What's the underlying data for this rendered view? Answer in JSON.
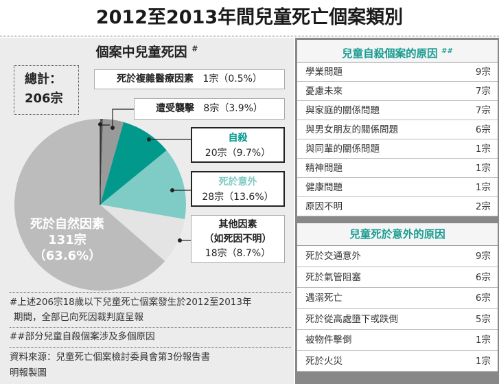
{
  "title": "2012至2013年間兒童死亡個案類別",
  "chart_data": {
    "type": "pie",
    "title": "個案中兒童死因",
    "title_mark": "#",
    "total_label": "總計：",
    "total_value": "206宗",
    "slices": [
      {
        "name": "死於複雜醫療因素",
        "count": 1,
        "count_label": "1宗",
        "pct": 0.5,
        "pct_label": "（0.5%）",
        "color": "#555555"
      },
      {
        "name": "遭受襲擊",
        "count": 8,
        "count_label": "8宗",
        "pct": 3.9,
        "pct_label": "（3.9%）",
        "color": "#9a9a9a"
      },
      {
        "name": "自殺",
        "count": 20,
        "count_label": "20宗",
        "pct": 9.7,
        "pct_label": "（9.7%）",
        "color": "#00998c"
      },
      {
        "name": "死於意外",
        "count": 28,
        "count_label": "28宗",
        "pct": 13.6,
        "pct_label": "（13.6%）",
        "color": "#7fcbc5"
      },
      {
        "name": "其他因素",
        "sub": "（如死因不明）",
        "count": 18,
        "count_label": "18宗",
        "pct": 8.7,
        "pct_label": "（8.7%）",
        "color": "#e4e4e4"
      },
      {
        "name": "死於自然因素",
        "count": 131,
        "count_label": "131宗",
        "pct": 63.6,
        "pct_label": "（63.6%）",
        "color": "#bcbcbc"
      }
    ]
  },
  "notes": [
    "#上述206宗18歲以下兒童死亡個案發生於2012至2013年",
    "期間，全部已向死因裁判庭呈報",
    "##部分兒童自殺個案涉及多個原因",
    "資料來源：兒童死亡個案檢討委員會第3份報告書",
    "明報製圖"
  ],
  "suicide_table": {
    "title": "兒童自殺個案的原因",
    "mark": "##",
    "rows": [
      {
        "label": "學業問題",
        "value": "9宗"
      },
      {
        "label": "憂慮未來",
        "value": "7宗"
      },
      {
        "label": "與家庭的關係問題",
        "value": "7宗"
      },
      {
        "label": "與男女朋友的關係問題",
        "value": "6宗"
      },
      {
        "label": "與同輩的關係問題",
        "value": "1宗"
      },
      {
        "label": "精神問題",
        "value": "1宗"
      },
      {
        "label": "健康問題",
        "value": "1宗"
      },
      {
        "label": "原因不明",
        "value": "2宗"
      }
    ]
  },
  "accident_table": {
    "title": "兒童死於意外的原因",
    "rows": [
      {
        "label": "死於交通意外",
        "value": "9宗"
      },
      {
        "label": "死於氣管阻塞",
        "value": "6宗"
      },
      {
        "label": "遇溺死亡",
        "value": "6宗"
      },
      {
        "label": "死於從高處墮下或跌倒",
        "value": "5宗"
      },
      {
        "label": "被物件擊倒",
        "value": "1宗"
      },
      {
        "label": "死於火災",
        "value": "1宗"
      }
    ]
  }
}
